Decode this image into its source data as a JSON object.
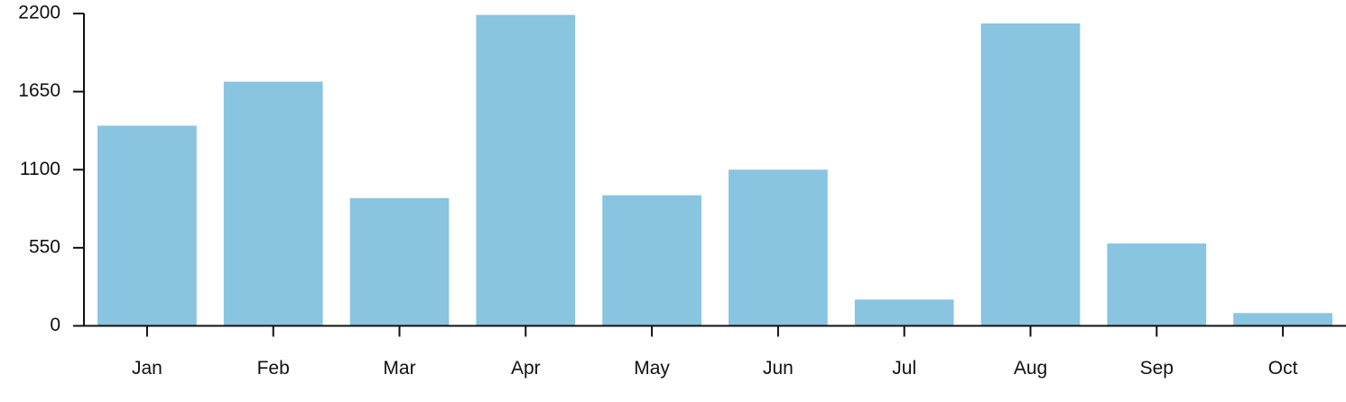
{
  "chart_data": {
    "type": "bar",
    "title": "",
    "xlabel": "",
    "ylabel": "",
    "categories": [
      "Jan",
      "Feb",
      "Mar",
      "Apr",
      "May",
      "Jun",
      "Jul",
      "Aug",
      "Sep",
      "Oct"
    ],
    "values": [
      1410,
      1720,
      900,
      2190,
      920,
      1100,
      185,
      2130,
      580,
      90
    ],
    "ylim": [
      0,
      2200
    ],
    "yticks": [
      0,
      550,
      1100,
      1650,
      2200
    ],
    "grid": false,
    "legend": "none",
    "colors": {
      "bar": "#89c4e0",
      "axis": "#111111",
      "text": "#111111"
    }
  }
}
